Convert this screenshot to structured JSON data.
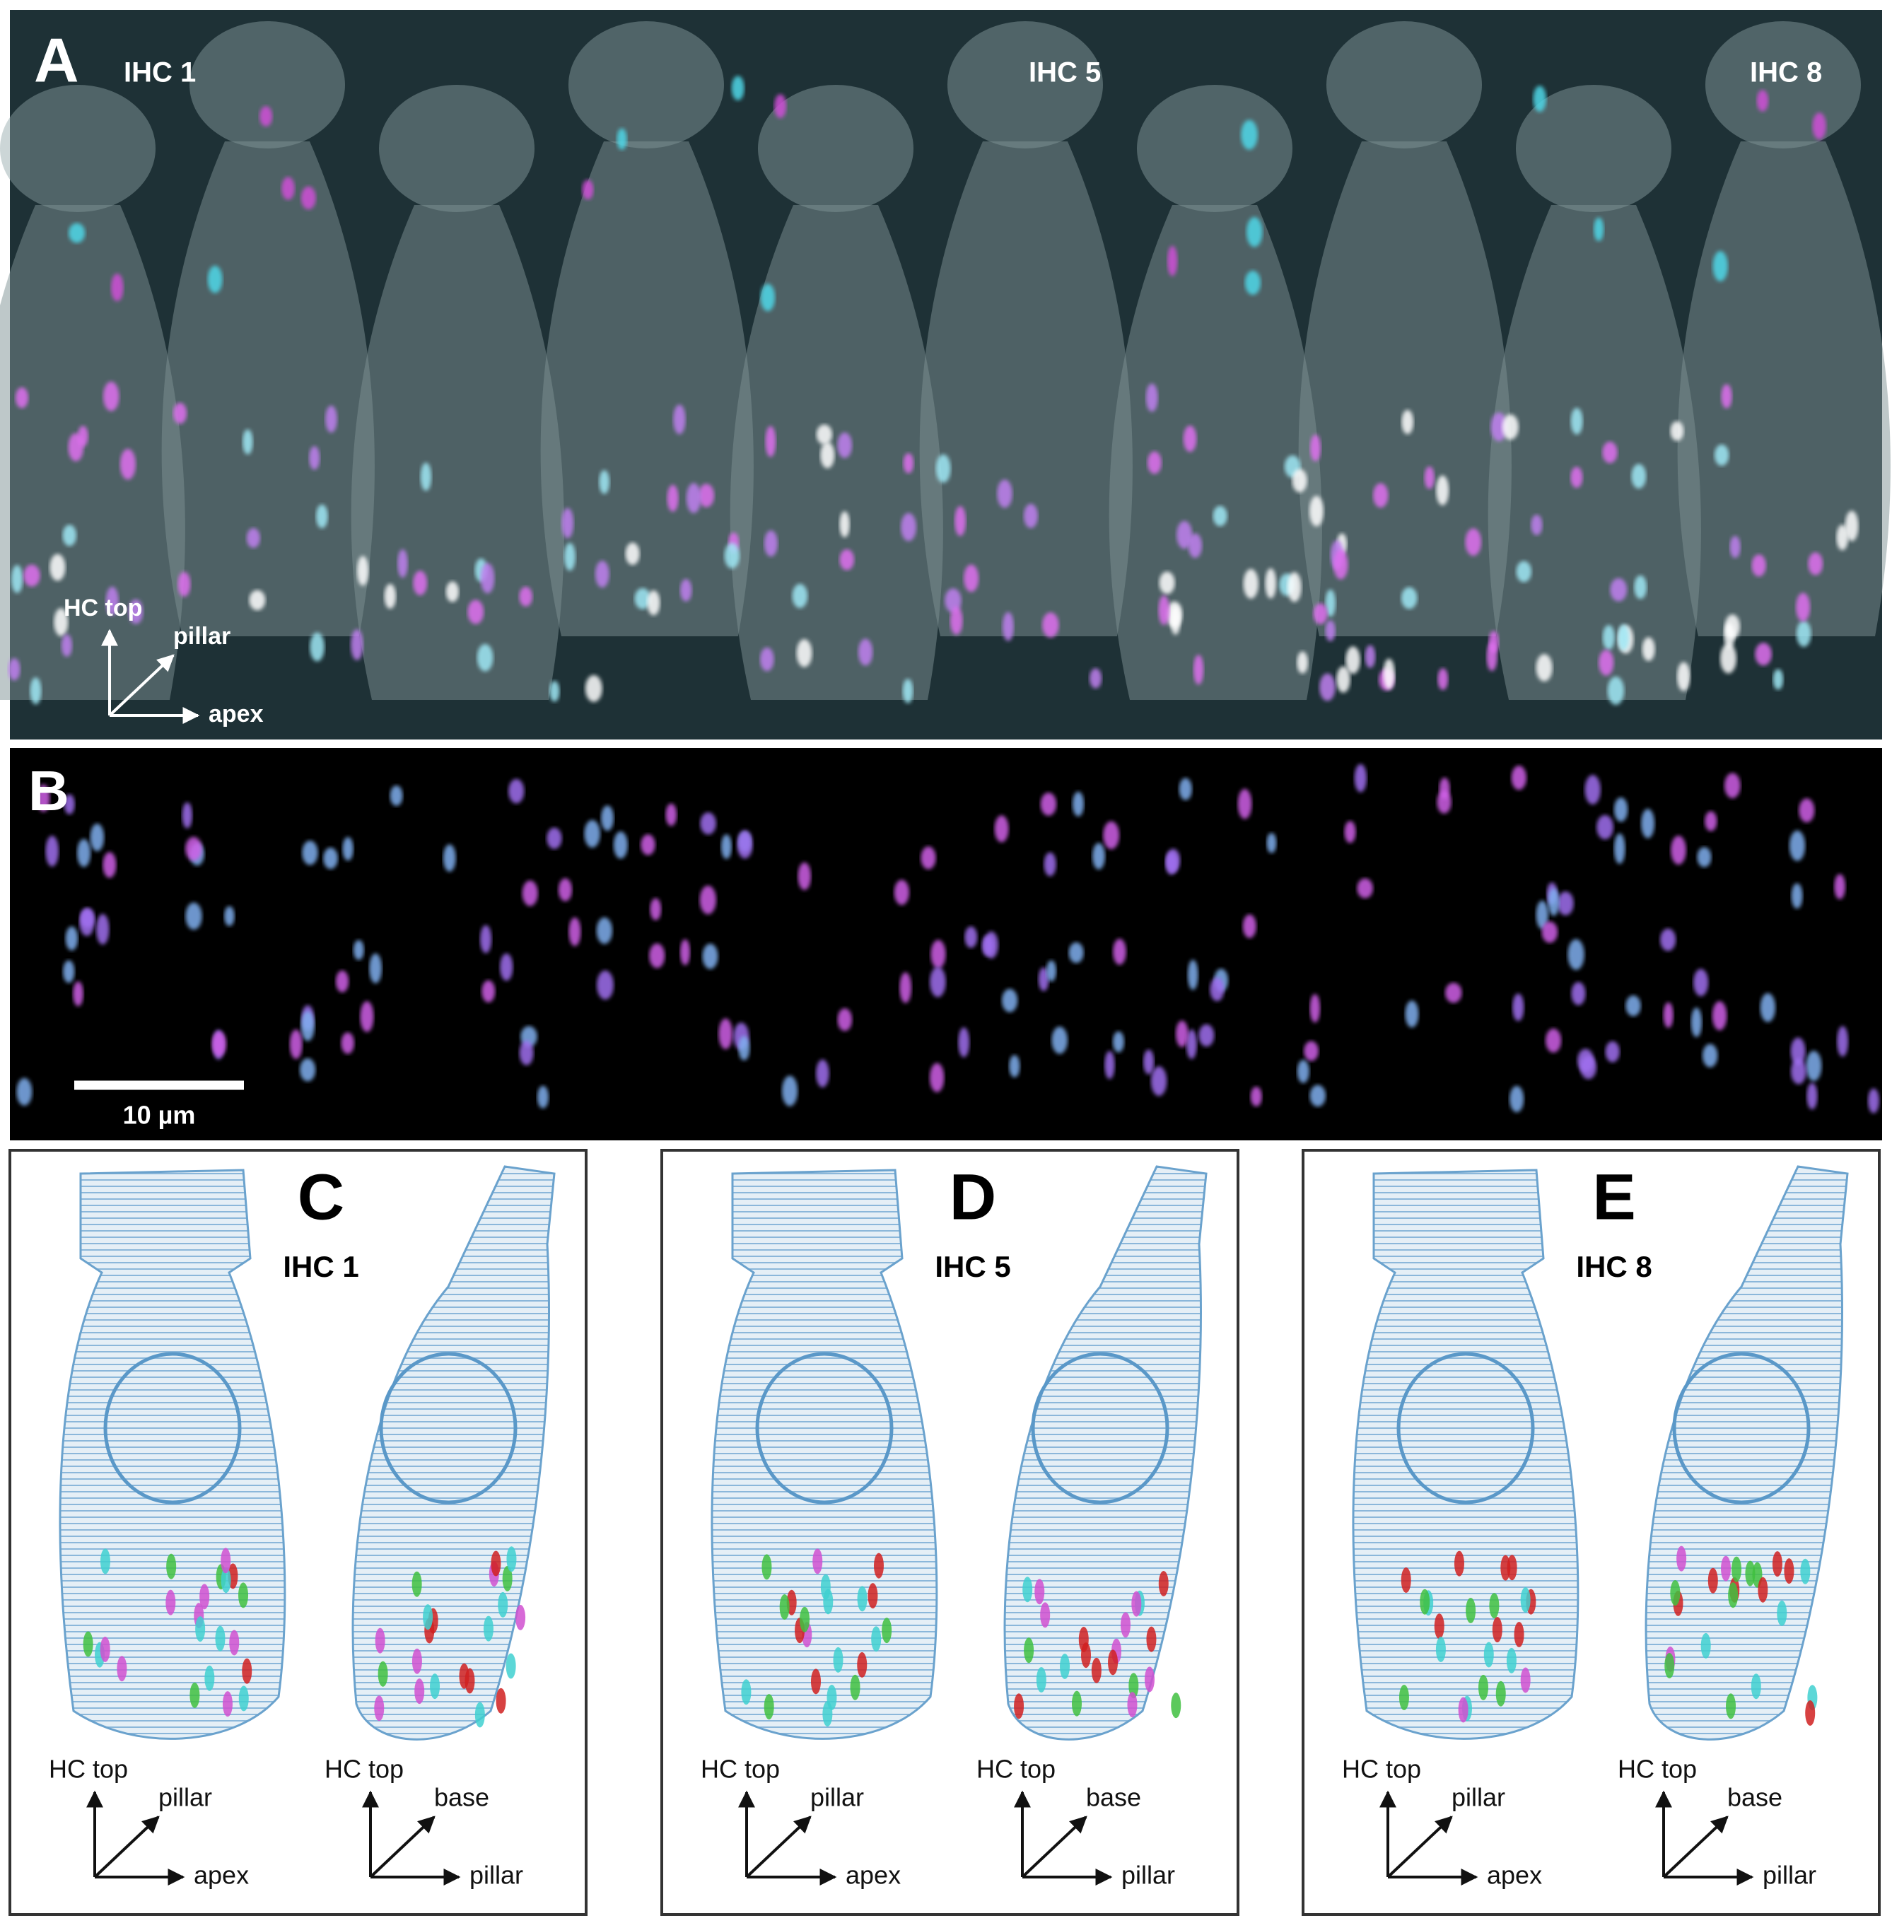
{
  "panels": [
    {
      "label": "A",
      "cell_labels": [
        "IHC 1",
        "IHC 5",
        "IHC 8"
      ],
      "axes": {
        "up": "HC top",
        "diagonal": "pillar",
        "right": "apex"
      }
    },
    {
      "label": "B",
      "scale_bar": "10 µm"
    },
    {
      "label": "C",
      "cell": "IHC 1",
      "views": [
        {
          "up": "HC top",
          "diagonal": "pillar",
          "right": "apex"
        },
        {
          "up": "HC top",
          "diagonal": "base",
          "right": "pillar"
        }
      ]
    },
    {
      "label": "D",
      "cell": "IHC 5",
      "views": [
        {
          "up": "HC top",
          "diagonal": "pillar",
          "right": "apex"
        },
        {
          "up": "HC top",
          "diagonal": "base",
          "right": "pillar"
        }
      ]
    },
    {
      "label": "E",
      "cell": "IHC 8",
      "views": [
        {
          "up": "HC top",
          "diagonal": "pillar",
          "right": "apex"
        },
        {
          "up": "HC top",
          "diagonal": "base",
          "right": "pillar"
        }
      ]
    }
  ]
}
